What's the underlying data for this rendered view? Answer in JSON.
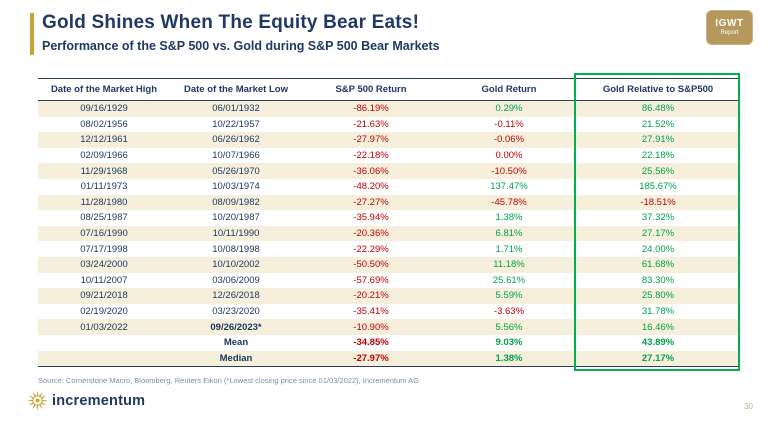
{
  "slide": {
    "title": "Gold Shines When The Equity Bear Eats!",
    "subtitle": "Performance of the S&P 500 vs. Gold during S&P 500 Bear Markets",
    "badge": {
      "line1": "IGWT",
      "line2": "Report"
    },
    "source": "Source: Cornerstone Macro, Bloomberg, Reuters Eikon (*Lowest closing price since 01/03/2022), Incrementum AG",
    "logo_text": "incrementum",
    "page_number": "30"
  },
  "colors": {
    "navy": "#1F3864",
    "gold": "#C9A43C",
    "badge_gold": "#B7985C",
    "red": "#C00000",
    "green": "#00A14B",
    "beige": "#F6EFDC",
    "box_green": "#00B050",
    "muted": "#7C8FA5",
    "line": "#2E4057",
    "page_num": "#BFB189"
  },
  "chart_data": {
    "type": "table",
    "title": "Gold Shines When The Equity Bear Eats!",
    "subtitle": "Performance of the S&P 500 vs. Gold during S&P 500 Bear Markets",
    "highlighted_column": "Gold Relative to S&P500",
    "columns": [
      "Date of the Market High",
      "Date of the Market Low",
      "S&P 500 Return",
      "Gold Return",
      "Gold Relative to S&P500"
    ],
    "rows": [
      [
        "09/16/1929",
        "06/01/1932",
        "-86.19%",
        "0.29%",
        "86.48%"
      ],
      [
        "08/02/1956",
        "10/22/1957",
        "-21.63%",
        "-0.11%",
        "21.52%"
      ],
      [
        "12/12/1961",
        "06/26/1962",
        "-27.97%",
        "-0.06%",
        "27.91%"
      ],
      [
        "02/09/1966",
        "10/07/1966",
        "-22.18%",
        "0.00%",
        "22.18%"
      ],
      [
        "11/29/1968",
        "05/26/1970",
        "-36.06%",
        "-10.50%",
        "25.56%"
      ],
      [
        "01/11/1973",
        "10/03/1974",
        "-48.20%",
        "137.47%",
        "185.67%"
      ],
      [
        "11/28/1980",
        "08/09/1982",
        "-27.27%",
        "-45.78%",
        "-18.51%"
      ],
      [
        "08/25/1987",
        "10/20/1987",
        "-35.94%",
        "1.38%",
        "37.32%"
      ],
      [
        "07/16/1990",
        "10/11/1990",
        "-20.36%",
        "6.81%",
        "27.17%"
      ],
      [
        "07/17/1998",
        "10/08/1998",
        "-22.29%",
        "1.71%",
        "24.00%"
      ],
      [
        "03/24/2000",
        "10/10/2002",
        "-50.50%",
        "11.18%",
        "61.68%"
      ],
      [
        "10/11/2007",
        "03/06/2009",
        "-57.69%",
        "25.61%",
        "83.30%"
      ],
      [
        "09/21/2018",
        "12/26/2018",
        "-20.21%",
        "5.59%",
        "25.80%"
      ],
      [
        "02/19/2020",
        "03/23/2020",
        "-35.41%",
        "-3.63%",
        "31.78%"
      ],
      [
        "01/03/2022",
        "09/26/2023*",
        "-10.90%",
        "5.56%",
        "16.46%"
      ]
    ],
    "summary_rows": [
      [
        "",
        "Mean",
        "-34.85%",
        "9.03%",
        "43.89%"
      ],
      [
        "",
        "Median",
        "-27.97%",
        "1.38%",
        "27.17%"
      ]
    ],
    "footnote": "*Lowest closing price since 01/03/2022"
  }
}
